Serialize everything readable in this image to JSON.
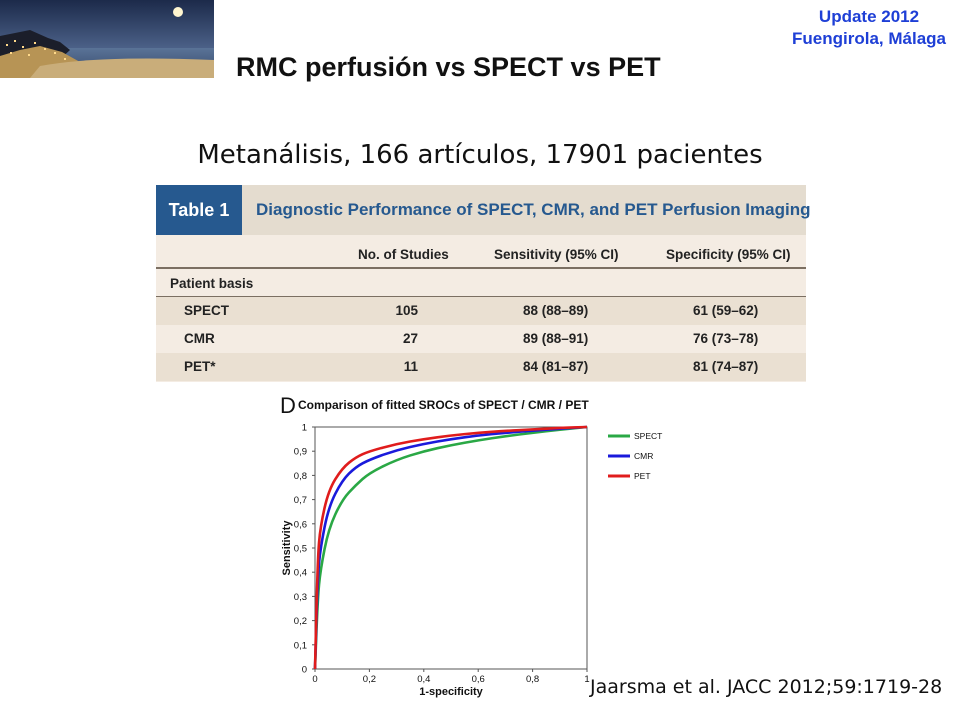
{
  "header": {
    "update_line1": "Update 2012",
    "update_line2": "Fuengirola, Málaga",
    "title": "RMC perfusión vs SPECT vs PET",
    "subtitle": "Metanálisis, 166 artículos, 17901 pacientes"
  },
  "table": {
    "tag": "Table 1",
    "caption": "Diagnostic Performance of SPECT, CMR, and PET Perfusion Imaging",
    "columns": [
      "No. of Studies",
      "Sensitivity (95% CI)",
      "Specificity (95% CI)"
    ],
    "group_label": "Patient basis",
    "rows": [
      {
        "modality": "SPECT",
        "studies": "105",
        "sensitivity": "88 (88–89)",
        "specificity": "61 (59–62)"
      },
      {
        "modality": "CMR",
        "studies": "27",
        "sensitivity": "89 (88–91)",
        "specificity": "76 (73–78)"
      },
      {
        "modality": "PET*",
        "studies": "11",
        "sensitivity": "84 (81–87)",
        "specificity": "81 (74–87)"
      }
    ]
  },
  "chart_data": {
    "type": "line",
    "panel_label": "D",
    "title": "Comparison of fitted SROCs of SPECT / CMR / PET",
    "xlabel": "1-specificity",
    "ylabel": "Sensitivity",
    "xlim": [
      0,
      1
    ],
    "ylim": [
      0,
      1
    ],
    "x_ticks": [
      "0",
      "0,2",
      "0,4",
      "0,6",
      "0,8",
      "1"
    ],
    "y_ticks": [
      "0",
      "0,1",
      "0,2",
      "0,3",
      "0,4",
      "0,5",
      "0,6",
      "0,7",
      "0,8",
      "0,9",
      "1"
    ],
    "legend_position": "right",
    "series": [
      {
        "name": "SPECT",
        "color": "#2aa845",
        "x": [
          0,
          0.01,
          0.02,
          0.05,
          0.1,
          0.15,
          0.2,
          0.3,
          0.4,
          0.5,
          0.6,
          0.7,
          0.8,
          0.9,
          1.0
        ],
        "y": [
          0,
          0.29,
          0.41,
          0.58,
          0.7,
          0.76,
          0.81,
          0.865,
          0.9,
          0.925,
          0.945,
          0.962,
          0.976,
          0.989,
          1.0
        ]
      },
      {
        "name": "CMR",
        "color": "#1a1adb",
        "x": [
          0,
          0.01,
          0.02,
          0.05,
          0.1,
          0.15,
          0.2,
          0.3,
          0.4,
          0.5,
          0.6,
          0.7,
          0.8,
          0.9,
          1.0
        ],
        "y": [
          0,
          0.38,
          0.5,
          0.67,
          0.78,
          0.835,
          0.865,
          0.905,
          0.93,
          0.95,
          0.965,
          0.976,
          0.985,
          0.993,
          1.0
        ]
      },
      {
        "name": "PET",
        "color": "#e01c1c",
        "x": [
          0,
          0.01,
          0.02,
          0.05,
          0.1,
          0.15,
          0.2,
          0.3,
          0.4,
          0.5,
          0.6,
          0.7,
          0.8,
          0.9,
          1.0
        ],
        "y": [
          0,
          0.46,
          0.59,
          0.74,
          0.83,
          0.875,
          0.9,
          0.93,
          0.95,
          0.965,
          0.976,
          0.984,
          0.99,
          0.996,
          1.0
        ]
      }
    ]
  },
  "citation": "Jaarsma et al. JACC 2012;59:1719-28"
}
